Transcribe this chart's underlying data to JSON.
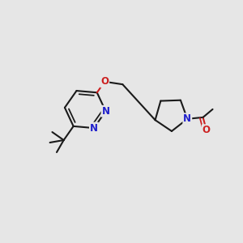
{
  "bg_color": "#e6e6e6",
  "bond_color": "#1a1a1a",
  "bond_width": 1.5,
  "N_color": "#2020cc",
  "O_color": "#cc2020",
  "fig_width": 3.0,
  "fig_height": 3.0,
  "dpi": 100,
  "xlim": [
    0,
    10
  ],
  "ylim": [
    0,
    10
  ]
}
